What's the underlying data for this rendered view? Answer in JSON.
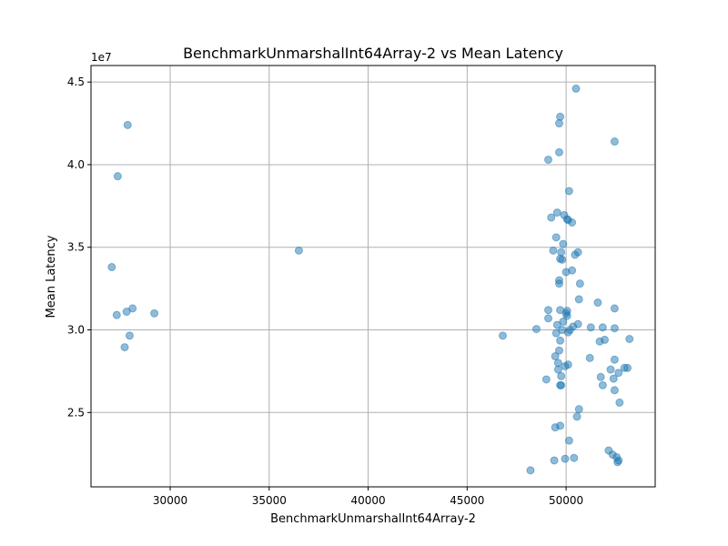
{
  "chart_data": {
    "type": "scatter",
    "title": "BenchmarkUnmarshalInt64Array-2 vs Mean Latency",
    "xlabel": "BenchmarkUnmarshalInt64Array-2",
    "ylabel": "Mean Latency",
    "y_offset_text": "1e7",
    "xlim": [
      26000,
      54500
    ],
    "ylim": [
      20500000,
      46000000
    ],
    "x_ticks": [
      30000,
      35000,
      40000,
      45000,
      50000
    ],
    "x_tick_labels": [
      "30000",
      "35000",
      "40000",
      "45000",
      "50000"
    ],
    "y_ticks": [
      25000000,
      30000000,
      35000000,
      40000000,
      45000000
    ],
    "y_tick_labels": [
      "2.5",
      "3.0",
      "3.5",
      "4.0",
      "4.5"
    ],
    "grid": true,
    "color": "#1f77b4",
    "points": [
      [
        27850,
        42400000
      ],
      [
        27350,
        39300000
      ],
      [
        27050,
        33800000
      ],
      [
        27300,
        30900000
      ],
      [
        27800,
        31100000
      ],
      [
        28100,
        31300000
      ],
      [
        27950,
        29650000
      ],
      [
        27700,
        28950000
      ],
      [
        29200,
        31000000
      ],
      [
        36500,
        34800000
      ],
      [
        46800,
        29650000
      ],
      [
        48200,
        21500000
      ],
      [
        48500,
        30050000
      ],
      [
        49000,
        27000000
      ],
      [
        49100,
        31200000
      ],
      [
        49100,
        30700000
      ],
      [
        49100,
        40300000
      ],
      [
        49250,
        36800000
      ],
      [
        49350,
        34800000
      ],
      [
        49400,
        22100000
      ],
      [
        49450,
        24100000
      ],
      [
        49450,
        28400000
      ],
      [
        49500,
        29800000
      ],
      [
        49500,
        35600000
      ],
      [
        49550,
        37100000
      ],
      [
        49550,
        30300000
      ],
      [
        49600,
        27600000
      ],
      [
        49600,
        28000000
      ],
      [
        49650,
        28750000
      ],
      [
        49650,
        32800000
      ],
      [
        49650,
        33000000
      ],
      [
        49650,
        40750000
      ],
      [
        49650,
        42500000
      ],
      [
        49700,
        42900000
      ],
      [
        49700,
        24200000
      ],
      [
        49700,
        26650000
      ],
      [
        49700,
        29350000
      ],
      [
        49700,
        31200000
      ],
      [
        49700,
        34300000
      ],
      [
        49750,
        34700000
      ],
      [
        49750,
        26650000
      ],
      [
        49750,
        27200000
      ],
      [
        49800,
        34250000
      ],
      [
        49800,
        30000000
      ],
      [
        49850,
        35200000
      ],
      [
        49850,
        30500000
      ],
      [
        49900,
        36950000
      ],
      [
        49950,
        27800000
      ],
      [
        49950,
        22200000
      ],
      [
        50000,
        33500000
      ],
      [
        50000,
        31000000
      ],
      [
        50050,
        36700000
      ],
      [
        50050,
        30850000
      ],
      [
        50050,
        31150000
      ],
      [
        50100,
        36650000
      ],
      [
        50100,
        29850000
      ],
      [
        50100,
        27900000
      ],
      [
        50150,
        38400000
      ],
      [
        50150,
        23300000
      ],
      [
        50200,
        30000000
      ],
      [
        50300,
        36500000
      ],
      [
        50300,
        33600000
      ],
      [
        50350,
        30200000
      ],
      [
        50400,
        22250000
      ],
      [
        50450,
        34550000
      ],
      [
        50500,
        44600000
      ],
      [
        50550,
        24750000
      ],
      [
        50600,
        30350000
      ],
      [
        50600,
        34700000
      ],
      [
        50650,
        31850000
      ],
      [
        50650,
        25200000
      ],
      [
        50700,
        32800000
      ],
      [
        51200,
        28300000
      ],
      [
        51250,
        30150000
      ],
      [
        51600,
        31650000
      ],
      [
        51700,
        29300000
      ],
      [
        51750,
        27150000
      ],
      [
        51850,
        26650000
      ],
      [
        51850,
        30150000
      ],
      [
        51950,
        29400000
      ],
      [
        52150,
        22700000
      ],
      [
        52250,
        27600000
      ],
      [
        52350,
        22450000
      ],
      [
        52400,
        27050000
      ],
      [
        52450,
        26350000
      ],
      [
        52450,
        31300000
      ],
      [
        52450,
        30100000
      ],
      [
        52450,
        28200000
      ],
      [
        52450,
        41400000
      ],
      [
        52550,
        22300000
      ],
      [
        52600,
        22000000
      ],
      [
        52650,
        22100000
      ],
      [
        52650,
        27400000
      ],
      [
        52700,
        25600000
      ],
      [
        52950,
        27700000
      ],
      [
        53100,
        27700000
      ],
      [
        53200,
        29450000
      ]
    ]
  }
}
